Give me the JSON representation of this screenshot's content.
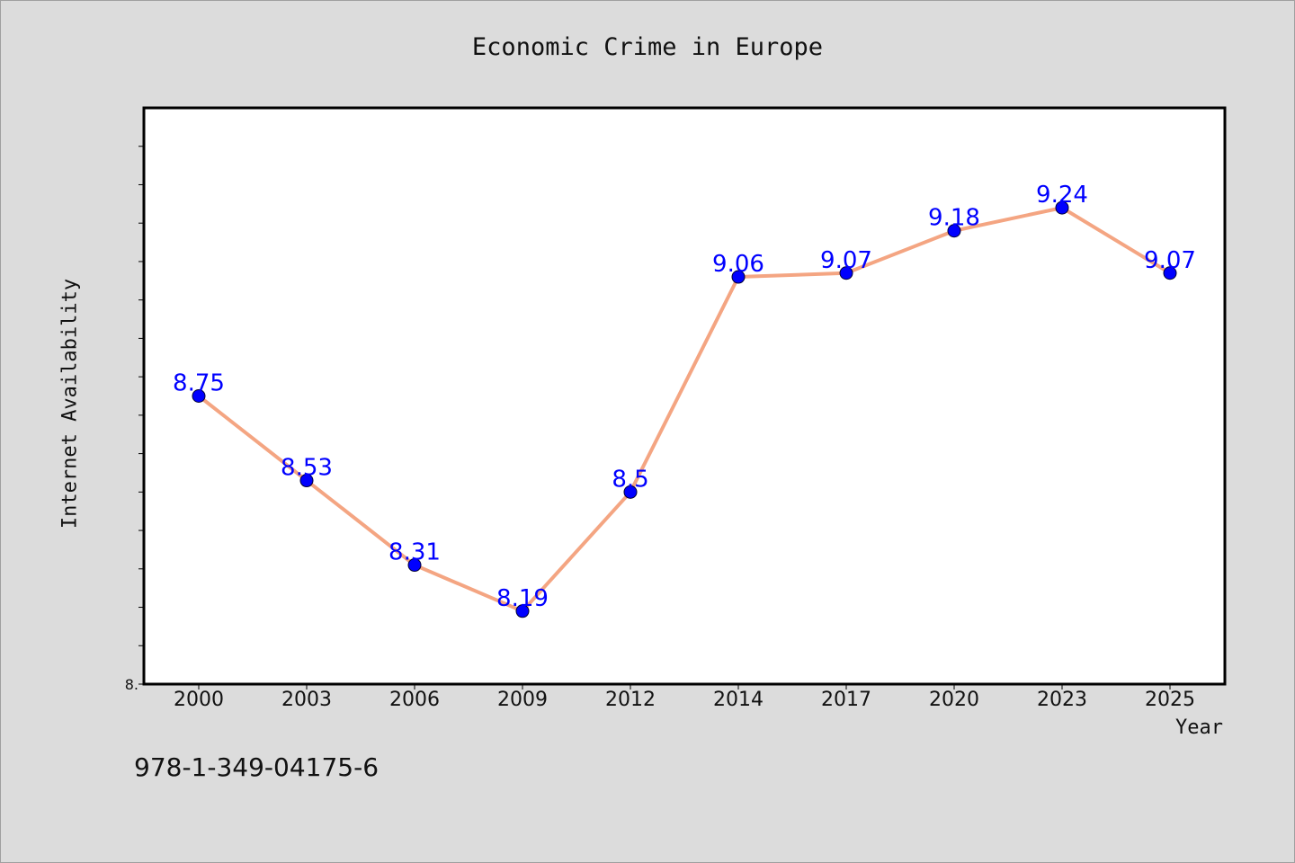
{
  "chart_data": {
    "type": "line",
    "title": "Economic Crime in Europe",
    "xlabel": "Year",
    "ylabel": "Internet Availability",
    "categories": [
      "2000",
      "2003",
      "2006",
      "2009",
      "2012",
      "2014",
      "2017",
      "2020",
      "2023",
      "2025"
    ],
    "series": [
      {
        "values": [
          8.75,
          8.53,
          8.31,
          8.19,
          8.5,
          9.06,
          9.07,
          9.18,
          9.24,
          9.07
        ],
        "labels": [
          "8.75",
          "8.53",
          "8.31",
          "8.19",
          "8.5",
          "9.06",
          "9.07",
          "9.18",
          "9.24",
          "9.07"
        ],
        "line_color": "#f4a582",
        "marker_color": "#0000ff",
        "label_color": "#0000ff"
      }
    ],
    "ylim": [
      8.0,
      9.5
    ],
    "yticks": [
      8.0,
      8.1,
      8.2,
      8.3,
      8.4,
      8.5,
      8.6,
      8.7,
      8.8,
      8.9,
      9.0,
      9.1,
      9.2,
      9.3,
      9.4
    ],
    "ytick_labels_shown": [
      "8."
    ],
    "grid": false,
    "legend": "none"
  },
  "footer": {
    "isbn": "978-1-349-04175-6"
  },
  "colors": {
    "background": "#dcdcdc",
    "plot_background": "#ffffff",
    "axes": "#000000"
  }
}
